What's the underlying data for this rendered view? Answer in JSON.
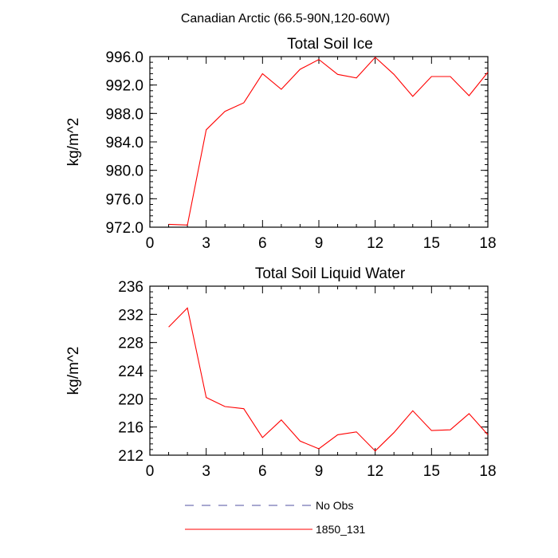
{
  "figure_title": "Canadian Arctic (66.5-90N,120-60W)",
  "legend": [
    {
      "label": "No Obs",
      "color": "#5050a0",
      "dash": true
    },
    {
      "label": "1850_131",
      "color": "#ff0000",
      "dash": false
    }
  ],
  "chart_data": [
    {
      "type": "line",
      "title": "Total Soil Ice",
      "xlabel": "",
      "ylabel": "kg/m^2",
      "xlim": [
        0,
        18
      ],
      "ylim": [
        972,
        996
      ],
      "xticks": [
        "0",
        "3",
        "6",
        "9",
        "12",
        "15",
        "18"
      ],
      "yticks": [
        "972.0",
        "976.0",
        "980.0",
        "984.0",
        "988.0",
        "992.0",
        "996.0"
      ],
      "series": [
        {
          "name": "1850_131",
          "color": "#ff0000",
          "x": [
            1,
            2,
            3,
            4,
            5,
            6,
            7,
            8,
            9,
            10,
            11,
            12,
            13,
            14,
            15,
            16,
            17,
            18
          ],
          "y": [
            972.4,
            972.3,
            985.7,
            988.3,
            989.5,
            993.6,
            991.4,
            994.2,
            995.6,
            993.5,
            993.0,
            995.9,
            993.5,
            990.4,
            993.2,
            993.2,
            990.5,
            993.8
          ]
        }
      ]
    },
    {
      "type": "line",
      "title": "Total Soil Liquid Water",
      "xlabel": "",
      "ylabel": "kg/m^2",
      "xlim": [
        0,
        18
      ],
      "ylim": [
        212,
        236
      ],
      "xticks": [
        "0",
        "3",
        "6",
        "9",
        "12",
        "15",
        "18"
      ],
      "yticks": [
        "212",
        "216",
        "220",
        "224",
        "228",
        "232",
        "236"
      ],
      "series": [
        {
          "name": "1850_131",
          "color": "#ff0000",
          "x": [
            1,
            2,
            3,
            4,
            5,
            6,
            7,
            8,
            9,
            10,
            11,
            12,
            13,
            14,
            15,
            16,
            17,
            18
          ],
          "y": [
            230.2,
            232.9,
            220.2,
            218.9,
            218.6,
            214.5,
            217.0,
            214.0,
            212.9,
            214.9,
            215.3,
            212.6,
            215.2,
            218.3,
            215.5,
            215.6,
            217.9,
            214.9
          ]
        }
      ]
    }
  ]
}
